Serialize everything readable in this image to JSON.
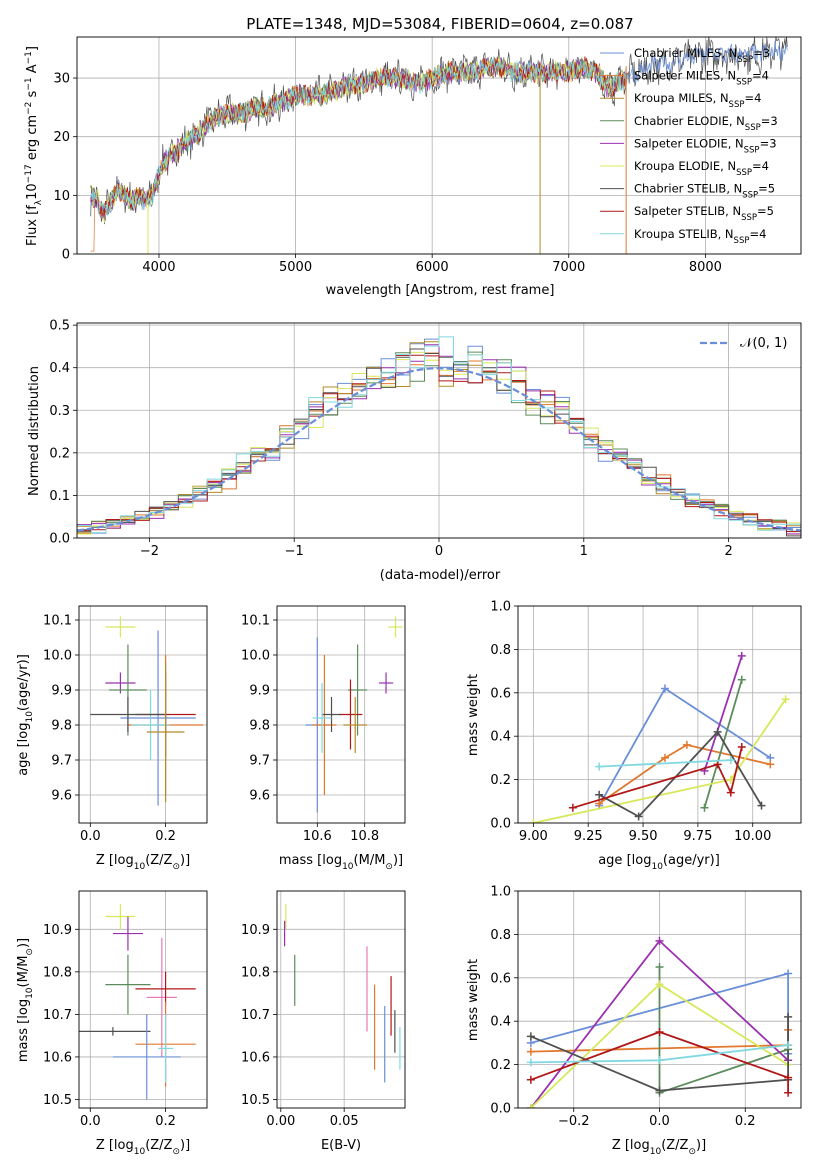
{
  "title": "PLATE=1348, MJD=53084, FIBERID=0604, z=0.087",
  "chart_data": [
    {
      "id": "spectrum",
      "type": "line",
      "xlabel": "wavelength [Angstrom, rest frame]",
      "ylabel": "Flux [f_λ 10^-17 erg cm^-2 s^-1 A^-1]",
      "ylabel_parts": {
        "a": "Flux [f",
        "b": "λ",
        "c": "10",
        "d": "−17",
        "e": " erg cm",
        "f": "−2",
        "g": " s",
        "h": "−1",
        "i": " A",
        "j": "−1",
        "k": "]"
      },
      "xlim": [
        3400,
        8700
      ],
      "ylim": [
        0,
        37
      ],
      "xticks": [
        "4000",
        "5000",
        "6000",
        "7000",
        "8000"
      ],
      "yticks": [
        "0",
        "10",
        "20",
        "30"
      ],
      "xtick_values": [
        4000,
        5000,
        6000,
        7000,
        8000
      ],
      "ytick_values": [
        0,
        10,
        20,
        30
      ],
      "spectrum_shape": {
        "x": [
          3500,
          3550,
          3600,
          3650,
          3700,
          3750,
          3800,
          3850,
          3900,
          3950,
          4000,
          4050,
          4100,
          4150,
          4200,
          4300,
          4400,
          4500,
          4600,
          4700,
          4800,
          4900,
          5000,
          5100,
          5200,
          5300,
          5400,
          5500,
          5600,
          5700,
          5800,
          5900,
          6000,
          6100,
          6200,
          6300,
          6400,
          6500,
          6600,
          6700,
          6800,
          6900,
          7000,
          7100,
          7200,
          7300,
          7400,
          7500,
          7600,
          7800,
          8000,
          8200,
          8400,
          8600
        ],
        "y": [
          10,
          9,
          7,
          9,
          11,
          10,
          9,
          10,
          9,
          10,
          14,
          16,
          17,
          18,
          19,
          21,
          23,
          24,
          24,
          25,
          25,
          26,
          27,
          27,
          27,
          28,
          29,
          29,
          30,
          30,
          30,
          29,
          30,
          31,
          31,
          31,
          32,
          32,
          31,
          31,
          31,
          31,
          31,
          32,
          31,
          28,
          30,
          31,
          32,
          33,
          34,
          34,
          34,
          35
        ]
      },
      "series": [
        {
          "name": "Chabrier MILES",
          "sub": "SSP",
          "n": "=3",
          "color": "#6a8fd8"
        },
        {
          "name": "Salpeter MILES",
          "sub": "SSP",
          "n": "=4",
          "color": "#e0782e"
        },
        {
          "name": "Kroupa MILES",
          "sub": "SSP",
          "n": "=4",
          "color": "#b58a28"
        },
        {
          "name": "Chabrier ELODIE",
          "sub": "SSP",
          "n": "=3",
          "color": "#5c8c5c"
        },
        {
          "name": "Salpeter ELODIE",
          "sub": "SSP",
          "n": "=3",
          "color": "#9b30b0"
        },
        {
          "name": "Kroupa ELODIE",
          "sub": "SSP",
          "n": "=4",
          "color": "#d8e85c"
        },
        {
          "name": "Chabrier STELIB",
          "sub": "SSP",
          "n": "=5",
          "color": "#505050"
        },
        {
          "name": "Salpeter STELIB",
          "sub": "SSP",
          "n": "=5",
          "color": "#b01818"
        },
        {
          "name": "Kroupa STELIB",
          "sub": "SSP",
          "n": "=4",
          "color": "#80d8e0"
        }
      ],
      "legend_prefix": "N",
      "legend_loc": "right"
    },
    {
      "id": "histogram",
      "type": "bar",
      "xlabel": "(data-model)/error",
      "ylabel": "Normed distribution",
      "xlim": [
        -2.5,
        2.5
      ],
      "ylim": [
        0,
        0.505
      ],
      "xticks": [
        "−2",
        "−1",
        "0",
        "1",
        "2"
      ],
      "xtick_values": [
        -2,
        -1,
        0,
        1,
        2
      ],
      "yticks": [
        "0.0",
        "0.1",
        "0.2",
        "0.3",
        "0.4",
        "0.5"
      ],
      "ytick_values": [
        0,
        0.1,
        0.2,
        0.3,
        0.4,
        0.5
      ],
      "grid": true,
      "legend": "𝒩(0, 1)",
      "legend_loc": "upper right",
      "gaussian": {
        "mean": 0,
        "sigma": 1,
        "color": "#6a8fd8"
      },
      "bin_width": 0.1
    },
    {
      "id": "age-vs-Z",
      "type": "scatter",
      "xlabel": "Z [log10(Z/Z⊙)]",
      "xlabel_parts": {
        "a": "Z [log",
        "b": "10",
        "c": "(Z/Z",
        "d": "⊙",
        "e": ")]"
      },
      "ylabel": "age  [log10(age/yr)]",
      "ylabel_parts": {
        "a": "age  [log",
        "b": "10",
        "c": "(age/yr)]"
      },
      "xlim": [
        -0.03,
        0.31
      ],
      "ylim": [
        9.52,
        10.14
      ],
      "xticks": [
        "0.0",
        "0.2"
      ],
      "xtick_values": [
        0,
        0.2
      ],
      "yticks": [
        "9.6",
        "9.7",
        "9.8",
        "9.9",
        "10.0",
        "10.1"
      ],
      "ytick_values": [
        9.6,
        9.7,
        9.8,
        9.9,
        10.0,
        10.1
      ],
      "points": [
        {
          "x": 0.08,
          "y": 10.08,
          "xerr": 0.04,
          "yerr": 0.03,
          "s": 5
        },
        {
          "x": 0.08,
          "y": 9.92,
          "xerr": 0.04,
          "yerr": 0.03,
          "s": 4
        },
        {
          "x": 0.1,
          "y": 9.9,
          "xerr": 0.05,
          "yerr": 0.13,
          "s": 3
        },
        {
          "x": 0.18,
          "y": 9.82,
          "xerr": 0.1,
          "yerr": 0.25,
          "s": 0
        },
        {
          "x": 0.2,
          "y": 9.8,
          "xerr": 0.1,
          "yerr": 0.2,
          "s": 1
        },
        {
          "x": 0.16,
          "y": 9.8,
          "xerr": 0.05,
          "yerr": 0.1,
          "s": 8
        },
        {
          "x": 0.2,
          "y": 9.83,
          "xerr": 0.08,
          "yerr": 0.12,
          "s": 7
        },
        {
          "x": 0.1,
          "y": 9.83,
          "xerr": 0.1,
          "yerr": 0.05,
          "s": 6
        },
        {
          "x": 0.2,
          "y": 9.78,
          "xerr": 0.05,
          "yerr": 0.2,
          "s": 2
        }
      ]
    },
    {
      "id": "age-vs-mass",
      "type": "scatter",
      "xlabel": "mass [log10(M/M⊙)]",
      "xlabel_parts": {
        "a": "mass [log",
        "b": "10",
        "c": "(M/M",
        "d": "⊙",
        "e": ")]"
      },
      "xlim": [
        10.43,
        10.97
      ],
      "ylim": [
        9.52,
        10.14
      ],
      "xticks": [
        "10.6",
        "10.8"
      ],
      "xtick_values": [
        10.6,
        10.8
      ],
      "yticks": [
        "9.6",
        "9.7",
        "9.8",
        "9.9",
        "10.0",
        "10.1"
      ],
      "ytick_values": [
        9.6,
        9.7,
        9.8,
        9.9,
        10.0,
        10.1
      ],
      "points": [
        {
          "x": 10.93,
          "y": 10.08,
          "xerr": 0.03,
          "yerr": 0.03,
          "s": 5
        },
        {
          "x": 10.89,
          "y": 9.92,
          "xerr": 0.03,
          "yerr": 0.03,
          "s": 4
        },
        {
          "x": 10.77,
          "y": 9.9,
          "xerr": 0.04,
          "yerr": 0.13,
          "s": 3
        },
        {
          "x": 10.6,
          "y": 9.8,
          "xerr": 0.05,
          "yerr": 0.25,
          "s": 0
        },
        {
          "x": 10.63,
          "y": 9.8,
          "xerr": 0.05,
          "yerr": 0.2,
          "s": 1
        },
        {
          "x": 10.74,
          "y": 9.83,
          "xerr": 0.05,
          "yerr": 0.1,
          "s": 7
        },
        {
          "x": 10.66,
          "y": 9.83,
          "xerr": 0.04,
          "yerr": 0.05,
          "s": 6
        },
        {
          "x": 10.62,
          "y": 9.82,
          "xerr": 0.04,
          "yerr": 0.1,
          "s": 8
        },
        {
          "x": 10.76,
          "y": 9.8,
          "xerr": 0.05,
          "yerr": 0.08,
          "s": 2
        }
      ]
    },
    {
      "id": "weight-vs-age",
      "type": "line",
      "xlabel": "age  [log10(age/yr)]",
      "xlabel_parts": {
        "a": "age  [log",
        "b": "10",
        "c": "(age/yr)]"
      },
      "ylabel": "mass weight",
      "xlim": [
        8.93,
        10.22
      ],
      "ylim": [
        0,
        1.0
      ],
      "xticks": [
        "9.00",
        "9.25",
        "9.50",
        "9.75",
        "10.00"
      ],
      "xtick_values": [
        9.0,
        9.25,
        9.5,
        9.75,
        10.0
      ],
      "yticks": [
        "0.0",
        "0.2",
        "0.4",
        "0.6",
        "0.8",
        "1.0"
      ],
      "ytick_values": [
        0,
        0.2,
        0.4,
        0.6,
        0.8,
        1.0
      ],
      "grid": true,
      "lines": [
        {
          "s": 0,
          "x": [
            9.3,
            9.6,
            10.08
          ],
          "y": [
            0.08,
            0.62,
            0.3
          ]
        },
        {
          "s": 1,
          "x": [
            9.3,
            9.6,
            9.7,
            10.08
          ],
          "y": [
            0.09,
            0.3,
            0.36,
            0.27
          ]
        },
        {
          "s": 3,
          "x": [
            9.78,
            9.95
          ],
          "y": [
            0.07,
            0.66
          ]
        },
        {
          "s": 4,
          "x": [
            9.78,
            9.95
          ],
          "y": [
            0.24,
            0.77
          ]
        },
        {
          "s": 5,
          "x": [
            9.0,
            9.9,
            10.15
          ],
          "y": [
            0.0,
            0.2,
            0.57
          ]
        },
        {
          "s": 6,
          "x": [
            9.3,
            9.48,
            9.84,
            10.04
          ],
          "y": [
            0.13,
            0.03,
            0.42,
            0.08
          ]
        },
        {
          "s": 7,
          "x": [
            9.18,
            9.84,
            9.9,
            9.95
          ],
          "y": [
            0.07,
            0.27,
            0.14,
            0.35
          ]
        },
        {
          "s": 8,
          "x": [
            9.3,
            9.9
          ],
          "y": [
            0.26,
            0.29
          ]
        }
      ]
    },
    {
      "id": "mass-vs-Z",
      "type": "scatter",
      "xlabel": "Z [log10(Z/Z⊙)]",
      "xlabel_parts": {
        "a": "Z [log",
        "b": "10",
        "c": "(Z/Z",
        "d": "⊙",
        "e": ")]"
      },
      "ylabel": "mass [log10(M/M⊙)]",
      "ylabel_parts": {
        "a": "mass [log",
        "b": "10",
        "c": "(M/M",
        "d": "⊙",
        "e": ")]"
      },
      "xlim": [
        -0.03,
        0.31
      ],
      "ylim": [
        10.48,
        10.99
      ],
      "xticks": [
        "0.0",
        "0.2"
      ],
      "xtick_values": [
        0,
        0.2
      ],
      "yticks": [
        "10.5",
        "10.6",
        "10.7",
        "10.8",
        "10.9"
      ],
      "ytick_values": [
        10.5,
        10.6,
        10.7,
        10.8,
        10.9
      ],
      "points": [
        {
          "x": 0.08,
          "y": 10.93,
          "xerr": 0.04,
          "yerr": 0.03,
          "s": 5
        },
        {
          "x": 0.1,
          "y": 10.89,
          "xerr": 0.04,
          "yerr": 0.04,
          "s": 4
        },
        {
          "x": 0.1,
          "y": 10.77,
          "xerr": 0.06,
          "yerr": 0.07,
          "s": 3
        },
        {
          "x": 0.19,
          "y": 10.74,
          "xerr": 0.04,
          "yerr": 0.14,
          "s": 9
        },
        {
          "x": 0.2,
          "y": 10.76,
          "xerr": 0.08,
          "yerr": 0.04,
          "s": 7
        },
        {
          "x": 0.06,
          "y": 10.66,
          "xerr": 0.1,
          "yerr": 0.01,
          "s": 6
        },
        {
          "x": 0.2,
          "y": 10.63,
          "xerr": 0.08,
          "yerr": 0.1,
          "s": 1
        },
        {
          "x": 0.15,
          "y": 10.6,
          "xerr": 0.09,
          "yerr": 0.1,
          "s": 0
        },
        {
          "x": 0.2,
          "y": 10.62,
          "xerr": 0.02,
          "yerr": 0.08,
          "s": 8
        }
      ]
    },
    {
      "id": "mass-vs-EBV",
      "type": "scatter",
      "xlabel": "E(B-V)",
      "xlim": [
        -0.003,
        0.098
      ],
      "ylim": [
        10.48,
        10.99
      ],
      "xticks": [
        "0.00",
        "0.05"
      ],
      "xtick_values": [
        0,
        0.05
      ],
      "yticks": [
        "10.5",
        "10.6",
        "10.7",
        "10.8",
        "10.9"
      ],
      "ytick_values": [
        10.5,
        10.6,
        10.7,
        10.8,
        10.9
      ],
      "points": [
        {
          "x": 0.004,
          "y": 10.93,
          "xerr": 0,
          "yerr": 0.03,
          "s": 5
        },
        {
          "x": 0.003,
          "y": 10.89,
          "xerr": 0,
          "yerr": 0.03,
          "s": 4
        },
        {
          "x": 0.011,
          "y": 10.78,
          "xerr": 0,
          "yerr": 0.06,
          "s": 3
        },
        {
          "x": 0.068,
          "y": 10.76,
          "xerr": 0,
          "yerr": 0.1,
          "s": 9
        },
        {
          "x": 0.074,
          "y": 10.67,
          "xerr": 0,
          "yerr": 0.1,
          "s": 1
        },
        {
          "x": 0.082,
          "y": 10.63,
          "xerr": 0,
          "yerr": 0.09,
          "s": 0
        },
        {
          "x": 0.087,
          "y": 10.72,
          "xerr": 0,
          "yerr": 0.07,
          "s": 7
        },
        {
          "x": 0.09,
          "y": 10.66,
          "xerr": 0,
          "yerr": 0.05,
          "s": 6
        },
        {
          "x": 0.094,
          "y": 10.62,
          "xerr": 0,
          "yerr": 0.05,
          "s": 8
        }
      ]
    },
    {
      "id": "weight-vs-Z",
      "type": "line",
      "xlabel": "Z [log10(Z/Z⊙)]",
      "xlabel_parts": {
        "a": "Z [log",
        "b": "10",
        "c": "(Z/Z",
        "d": "⊙",
        "e": ")]"
      },
      "ylabel": "mass weight",
      "xlim": [
        -0.33,
        0.33
      ],
      "ylim": [
        0,
        1.0
      ],
      "xticks": [
        "−0.2",
        "0.0",
        "0.2"
      ],
      "xtick_values": [
        -0.2,
        0,
        0.2
      ],
      "yticks": [
        "0.0",
        "0.2",
        "0.4",
        "0.6",
        "0.8",
        "1.0"
      ],
      "ytick_values": [
        0,
        0.2,
        0.4,
        0.6,
        0.8,
        1.0
      ],
      "grid": true,
      "lines": [
        {
          "s": 0,
          "x": [
            -0.3,
            0.3,
            0.3
          ],
          "y": [
            0.3,
            0.62,
            0.25
          ]
        },
        {
          "s": 1,
          "x": [
            -0.3,
            0.3,
            0.3
          ],
          "y": [
            0.26,
            0.29,
            0.36
          ]
        },
        {
          "s": 3,
          "x": [
            0.0,
            0.0,
            0.3
          ],
          "y": [
            0.65,
            0.07,
            0.27
          ]
        },
        {
          "s": 4,
          "x": [
            -0.3,
            0.0,
            0.3
          ],
          "y": [
            0.0,
            0.77,
            0.22
          ]
        },
        {
          "s": 5,
          "x": [
            -0.3,
            0.0,
            0.3
          ],
          "y": [
            0.0,
            0.57,
            0.2
          ]
        },
        {
          "s": 6,
          "x": [
            -0.3,
            0.0,
            0.3,
            0.3
          ],
          "y": [
            0.33,
            0.08,
            0.13,
            0.42
          ]
        },
        {
          "s": 7,
          "x": [
            -0.3,
            0.0,
            0.3,
            0.3
          ],
          "y": [
            0.13,
            0.35,
            0.14,
            0.07
          ]
        },
        {
          "s": 8,
          "x": [
            -0.3,
            0.0,
            0.3
          ],
          "y": [
            0.21,
            0.22,
            0.29
          ]
        }
      ]
    }
  ]
}
